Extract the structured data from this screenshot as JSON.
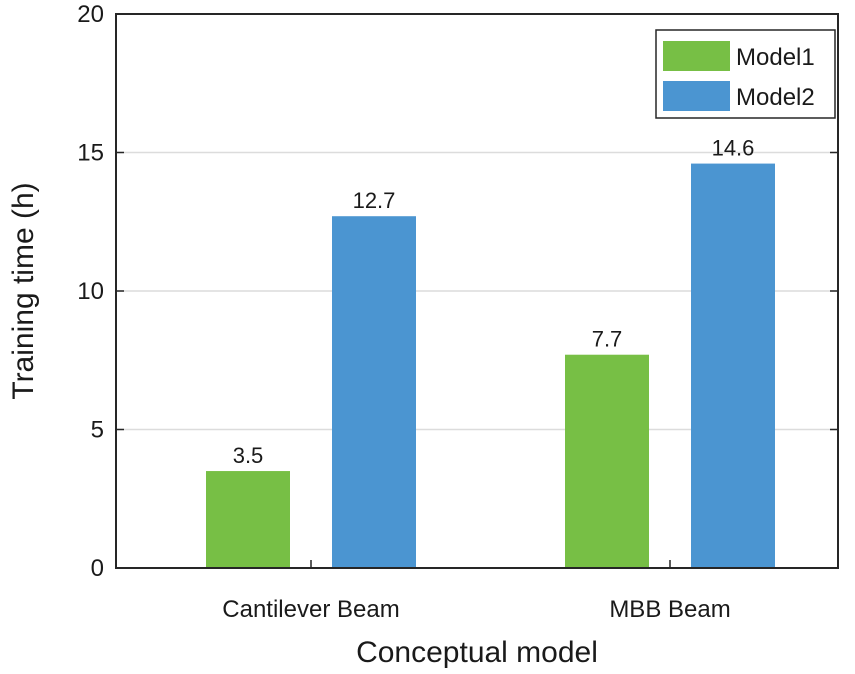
{
  "chart_data": {
    "type": "bar",
    "title": "",
    "xlabel": "Conceptual model",
    "ylabel": "Training time (h)",
    "categories": [
      "Cantilever Beam",
      "MBB Beam"
    ],
    "series": [
      {
        "name": "Model1",
        "values": [
          3.5,
          7.7
        ],
        "value_labels": [
          "3.5",
          "7.7"
        ],
        "color": "#77bf45"
      },
      {
        "name": "Model2",
        "values": [
          12.7,
          14.6
        ],
        "value_labels": [
          "12.7",
          "14.6"
        ],
        "color": "#4b95d1"
      }
    ],
    "ylim": [
      0,
      20
    ],
    "yticks": [
      0,
      5,
      10,
      15,
      20
    ],
    "grid": true,
    "legend_position": "top-right"
  }
}
